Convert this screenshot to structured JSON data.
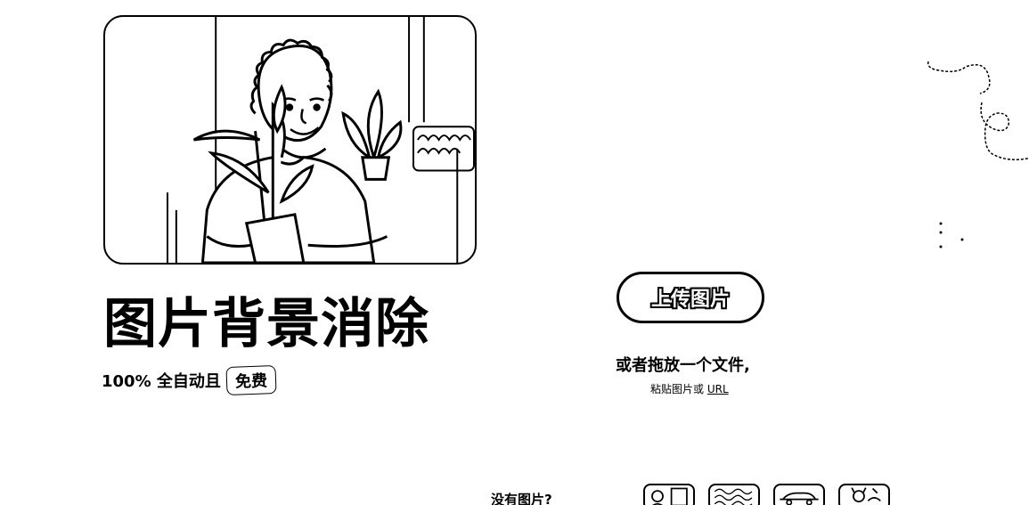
{
  "hero": {
    "image_icon": "person-with-plant-photo"
  },
  "headline": "图片背景消除",
  "subline": {
    "text": "100% 全自动且",
    "badge": "免费"
  },
  "upload": {
    "button_label": "上传图片",
    "drop_text": "或者拖放一个文件,",
    "paste_prefix": "粘贴图片或",
    "paste_link": "URL"
  },
  "samples": {
    "prompt": "没有图片?",
    "items": [
      "sample-image-1",
      "sample-image-2",
      "sample-image-3",
      "sample-image-4"
    ]
  },
  "colors": {
    "foreground": "#000000",
    "background": "#ffffff"
  }
}
